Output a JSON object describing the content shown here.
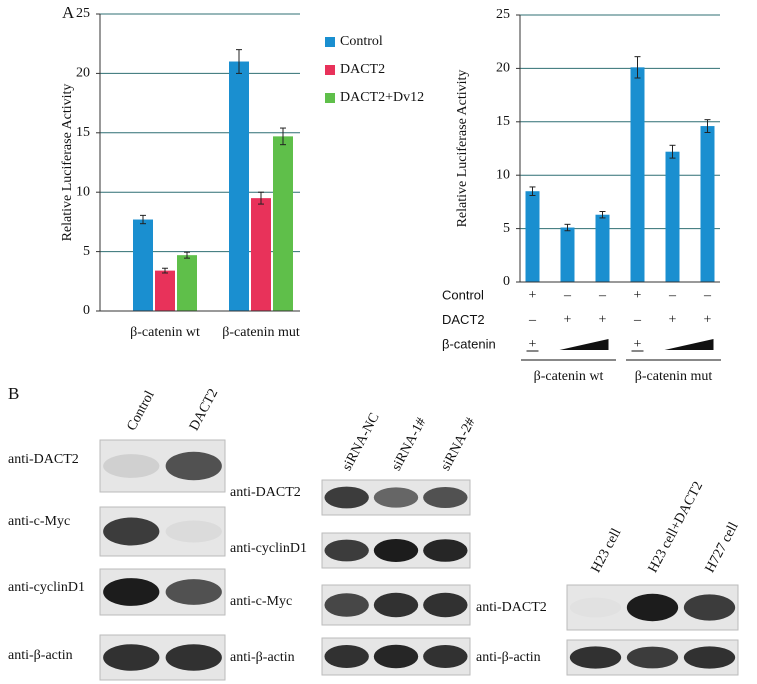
{
  "chart_data": [
    {
      "type": "bar",
      "panel_label": "A",
      "y_label": "Relative Luciferase Activity",
      "categories": [
        "β-catenin wt",
        "β-catenin mut"
      ],
      "series": [
        {
          "name": "Control",
          "color": "#1a8fd0",
          "values": [
            7.7,
            21
          ],
          "errors": [
            0.35,
            1.0
          ]
        },
        {
          "name": "DACT2",
          "color": "#e8325a",
          "values": [
            3.4,
            9.5
          ],
          "errors": [
            0.2,
            0.5
          ]
        },
        {
          "name": "DACT2+Dv12",
          "color": "#5fbf4a",
          "values": [
            4.7,
            14.7
          ],
          "errors": [
            0.25,
            0.7
          ]
        }
      ],
      "ylim": [
        0,
        25
      ],
      "yticks": [
        0,
        5,
        10,
        15,
        20,
        25
      ],
      "grid": true,
      "legend": "right"
    },
    {
      "type": "bar",
      "y_label": "Relative Luciferase Activity",
      "categories": [
        null,
        null,
        null,
        null,
        null,
        null
      ],
      "values": [
        8.5,
        5.1,
        6.3,
        20.1,
        12.2,
        14.6
      ],
      "errors": [
        0.4,
        0.3,
        0.3,
        1.0,
        0.6,
        0.6
      ],
      "color": "#1a8fd0",
      "ylim": [
        0,
        25
      ],
      "yticks": [
        0,
        5,
        10,
        15,
        20,
        25
      ],
      "grid": true,
      "conditions": [
        {
          "name": "Control",
          "marks": [
            "+",
            "–",
            "–",
            "+",
            "–",
            "–"
          ]
        },
        {
          "name": "DACT2",
          "marks": [
            "–",
            "+",
            "+",
            "–",
            "+",
            "+"
          ]
        },
        {
          "name": "β-catenin",
          "marks": [
            "+",
            null,
            null,
            "+",
            null,
            null
          ]
        }
      ],
      "groups": [
        "β-catenin wt",
        "β-catenin mut"
      ]
    }
  ],
  "blots": {
    "panel_label": "B",
    "panels": [
      {
        "columns": [
          "Control",
          "DACT2"
        ],
        "rows": [
          "anti-DACT2",
          "anti-c-Myc",
          "anti-cyclinD1",
          "anti-β-actin"
        ]
      },
      {
        "columns": [
          "siRNA-NC",
          "siRNA-1#",
          "siRNA-2#"
        ],
        "rows": [
          "anti-DACT2",
          "anti-cyclinD1",
          "anti-c-Myc",
          "anti-β-actin"
        ]
      },
      {
        "columns": [
          "H23 cell",
          "H23 cell+DACT2",
          "H727 cell"
        ],
        "rows": [
          "anti-DACT2",
          "anti-β-actin"
        ]
      }
    ]
  }
}
